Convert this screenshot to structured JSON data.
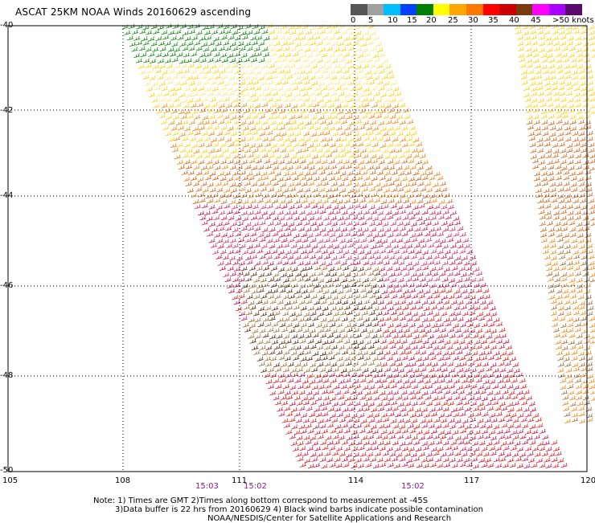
{
  "title": "ASCAT 25KM NOAA Winds 20160629 ascending",
  "scale": {
    "colors": [
      "#555555",
      "#a0a0a0",
      "#00bfff",
      "#0040ff",
      "#008000",
      "#ffff00",
      "#ffa500",
      "#ff7700",
      "#ff0000",
      "#cc0000",
      "#7a3a10",
      "#ff00ff",
      "#aa00ff",
      "#5a0a6a"
    ],
    "labels": [
      "0",
      "5",
      "10",
      "15",
      "20",
      "25",
      "30",
      "35",
      "40",
      "45",
      ">50 knots"
    ]
  },
  "axes": {
    "lat_labels": [
      "-40",
      "-42",
      "-44",
      "-46",
      "-48",
      "-50"
    ],
    "lon_labels": [
      "105",
      "108",
      "111",
      "114",
      "117",
      "120"
    ]
  },
  "times": [
    "15:03",
    "15:02",
    "15:02"
  ],
  "notes": [
    "Note: 1) Times are GMT 2)Times along bottom correspond to measurement at -45S",
    "3)Data buffer is 22 hrs from 20160629 4) Black wind barbs indicate possible contamination",
    "NOAA/NESDIS/Center for Satellite Applications and Research"
  ]
}
